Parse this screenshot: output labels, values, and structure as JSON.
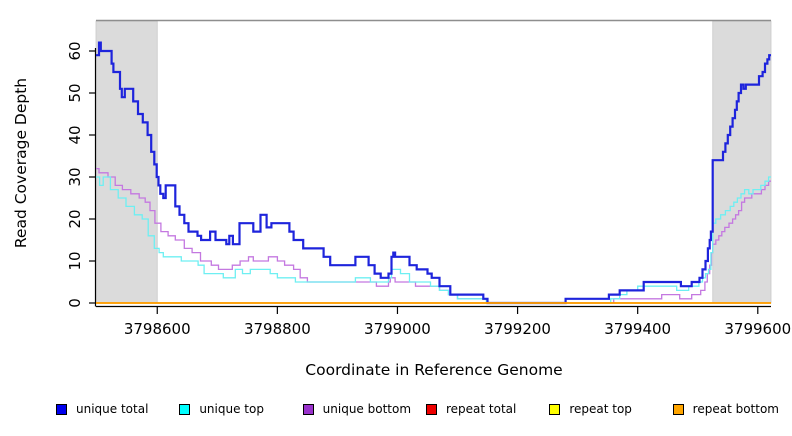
{
  "chart_data": {
    "type": "line",
    "line_style": "step",
    "title": "",
    "xlabel": "Coordinate in Reference Genome",
    "ylabel": "Read Coverage Depth",
    "grid": false,
    "legend_position": "bottom",
    "x_axis": {
      "min": 3798498,
      "max": 3799622,
      "ticks": [
        3798600,
        3798800,
        3799000,
        3799200,
        3799400,
        3799600
      ]
    },
    "y_axis": {
      "min": 0,
      "max": 67,
      "ticks": [
        0,
        10,
        20,
        30,
        40,
        50,
        60
      ]
    },
    "shade_color": "#DBDBDB",
    "shade_border": "#C9C9C9",
    "top_rule_color": "#8E8E8E",
    "shaded_regions": [
      {
        "x0": 3798498,
        "x1": 3798600
      },
      {
        "x0": 3799525,
        "x1": 3799622
      }
    ],
    "series": [
      {
        "name": "unique total",
        "swatch": "#0000EE",
        "line": "#1E24DC",
        "points": [
          [
            3798498,
            59
          ],
          [
            3798503,
            62
          ],
          [
            3798506,
            60
          ],
          [
            3798524,
            57
          ],
          [
            3798527,
            55
          ],
          [
            3798538,
            51
          ],
          [
            3798541,
            49
          ],
          [
            3798546,
            51
          ],
          [
            3798560,
            48
          ],
          [
            3798568,
            45
          ],
          [
            3798576,
            43
          ],
          [
            3798584,
            40
          ],
          [
            3798590,
            36
          ],
          [
            3798595,
            33
          ],
          [
            3798599,
            30
          ],
          [
            3798602,
            28
          ],
          [
            3798605,
            26
          ],
          [
            3798610,
            25
          ],
          [
            3798614,
            28
          ],
          [
            3798630,
            23
          ],
          [
            3798637,
            21
          ],
          [
            3798645,
            19
          ],
          [
            3798652,
            17
          ],
          [
            3798667,
            16
          ],
          [
            3798673,
            15
          ],
          [
            3798688,
            17
          ],
          [
            3798697,
            15
          ],
          [
            3798715,
            14
          ],
          [
            3798720,
            16
          ],
          [
            3798726,
            14
          ],
          [
            3798737,
            19
          ],
          [
            3798760,
            17
          ],
          [
            3798772,
            21
          ],
          [
            3798782,
            18
          ],
          [
            3798790,
            19
          ],
          [
            3798820,
            17
          ],
          [
            3798827,
            15
          ],
          [
            3798843,
            13
          ],
          [
            3798877,
            11
          ],
          [
            3798888,
            9
          ],
          [
            3798930,
            11
          ],
          [
            3798952,
            9
          ],
          [
            3798962,
            7
          ],
          [
            3798972,
            6
          ],
          [
            3798985,
            7
          ],
          [
            3798990,
            11
          ],
          [
            3798993,
            12
          ],
          [
            3798996,
            11
          ],
          [
            3799020,
            9
          ],
          [
            3799032,
            8
          ],
          [
            3799050,
            7
          ],
          [
            3799057,
            6
          ],
          [
            3799070,
            4
          ],
          [
            3799088,
            2
          ],
          [
            3799143,
            1
          ],
          [
            3799150,
            0
          ],
          [
            3799280,
            1
          ],
          [
            3799352,
            2
          ],
          [
            3799370,
            3
          ],
          [
            3799410,
            5
          ],
          [
            3799472,
            4
          ],
          [
            3799490,
            5
          ],
          [
            3799503,
            6
          ],
          [
            3799508,
            8
          ],
          [
            3799513,
            10
          ],
          [
            3799517,
            13
          ],
          [
            3799520,
            15
          ],
          [
            3799522,
            17
          ],
          [
            3799525,
            34
          ],
          [
            3799542,
            36
          ],
          [
            3799546,
            38
          ],
          [
            3799550,
            40
          ],
          [
            3799554,
            42
          ],
          [
            3799558,
            44
          ],
          [
            3799562,
            46
          ],
          [
            3799565,
            48
          ],
          [
            3799568,
            50
          ],
          [
            3799572,
            52
          ],
          [
            3799576,
            51
          ],
          [
            3799580,
            52
          ],
          [
            3799602,
            54
          ],
          [
            3799608,
            55
          ],
          [
            3799612,
            57
          ],
          [
            3799616,
            58
          ],
          [
            3799619,
            59
          ]
        ]
      },
      {
        "name": "unique top",
        "swatch": "#00FFFF",
        "line": "#6EEFF2",
        "points": [
          [
            3798498,
            30
          ],
          [
            3798504,
            28
          ],
          [
            3798510,
            30
          ],
          [
            3798522,
            27
          ],
          [
            3798535,
            25
          ],
          [
            3798548,
            23
          ],
          [
            3798562,
            21
          ],
          [
            3798575,
            20
          ],
          [
            3798585,
            16
          ],
          [
            3798595,
            13
          ],
          [
            3798603,
            12
          ],
          [
            3798610,
            11
          ],
          [
            3798640,
            10
          ],
          [
            3798668,
            9
          ],
          [
            3798678,
            7
          ],
          [
            3798710,
            6
          ],
          [
            3798730,
            8
          ],
          [
            3798742,
            7
          ],
          [
            3798755,
            8
          ],
          [
            3798788,
            7
          ],
          [
            3798800,
            6
          ],
          [
            3798830,
            5
          ],
          [
            3798930,
            6
          ],
          [
            3798955,
            5
          ],
          [
            3798985,
            6
          ],
          [
            3798990,
            8
          ],
          [
            3799005,
            7
          ],
          [
            3799020,
            5
          ],
          [
            3799055,
            4
          ],
          [
            3799070,
            3
          ],
          [
            3799085,
            2
          ],
          [
            3799100,
            1
          ],
          [
            3799148,
            0
          ],
          [
            3799355,
            1
          ],
          [
            3799370,
            2
          ],
          [
            3799382,
            3
          ],
          [
            3799400,
            4
          ],
          [
            3799465,
            3
          ],
          [
            3799485,
            4
          ],
          [
            3799502,
            5
          ],
          [
            3799508,
            6
          ],
          [
            3799513,
            7
          ],
          [
            3799518,
            8
          ],
          [
            3799522,
            12
          ],
          [
            3799525,
            19
          ],
          [
            3799530,
            20
          ],
          [
            3799538,
            21
          ],
          [
            3799546,
            22
          ],
          [
            3799554,
            23
          ],
          [
            3799560,
            24
          ],
          [
            3799566,
            25
          ],
          [
            3799572,
            26
          ],
          [
            3799578,
            27
          ],
          [
            3799585,
            26
          ],
          [
            3799592,
            27
          ],
          [
            3799605,
            28
          ],
          [
            3799612,
            29
          ],
          [
            3799618,
            30
          ]
        ]
      },
      {
        "name": "unique bottom",
        "swatch": "#9932CC",
        "line": "#C478E0",
        "points": [
          [
            3798498,
            32
          ],
          [
            3798503,
            31
          ],
          [
            3798518,
            30
          ],
          [
            3798530,
            28
          ],
          [
            3798542,
            27
          ],
          [
            3798556,
            26
          ],
          [
            3798570,
            25
          ],
          [
            3798580,
            24
          ],
          [
            3798588,
            22
          ],
          [
            3798596,
            19
          ],
          [
            3798606,
            17
          ],
          [
            3798618,
            16
          ],
          [
            3798630,
            15
          ],
          [
            3798645,
            13
          ],
          [
            3798658,
            12
          ],
          [
            3798672,
            10
          ],
          [
            3798690,
            9
          ],
          [
            3798702,
            8
          ],
          [
            3798725,
            9
          ],
          [
            3798738,
            10
          ],
          [
            3798752,
            11
          ],
          [
            3798760,
            10
          ],
          [
            3798785,
            11
          ],
          [
            3798800,
            10
          ],
          [
            3798812,
            9
          ],
          [
            3798827,
            8
          ],
          [
            3798838,
            6
          ],
          [
            3798850,
            5
          ],
          [
            3798965,
            4
          ],
          [
            3798985,
            5
          ],
          [
            3798988,
            6
          ],
          [
            3798996,
            5
          ],
          [
            3799030,
            4
          ],
          [
            3799070,
            3
          ],
          [
            3799085,
            2
          ],
          [
            3799100,
            1
          ],
          [
            3799150,
            0
          ],
          [
            3799360,
            1
          ],
          [
            3799440,
            2
          ],
          [
            3799470,
            1
          ],
          [
            3799490,
            2
          ],
          [
            3799505,
            3
          ],
          [
            3799512,
            5
          ],
          [
            3799516,
            7
          ],
          [
            3799520,
            9
          ],
          [
            3799523,
            12
          ],
          [
            3799525,
            14
          ],
          [
            3799530,
            15
          ],
          [
            3799535,
            16
          ],
          [
            3799540,
            17
          ],
          [
            3799545,
            18
          ],
          [
            3799552,
            19
          ],
          [
            3799558,
            20
          ],
          [
            3799563,
            21
          ],
          [
            3799568,
            22
          ],
          [
            3799573,
            24
          ],
          [
            3799578,
            25
          ],
          [
            3799590,
            26
          ],
          [
            3799606,
            27
          ],
          [
            3799612,
            28
          ],
          [
            3799618,
            29
          ]
        ]
      },
      {
        "name": "repeat total",
        "swatch": "#EE0000",
        "line": "#EE0000",
        "points": [
          [
            3798498,
            0
          ]
        ]
      },
      {
        "name": "repeat top",
        "swatch": "#FFFF00",
        "line": "#FFFF00",
        "points": [
          [
            3798498,
            0
          ]
        ]
      },
      {
        "name": "repeat bottom",
        "swatch": "#FFA500",
        "line": "#FF9E00",
        "points": [
          [
            3798498,
            0
          ]
        ]
      }
    ]
  }
}
